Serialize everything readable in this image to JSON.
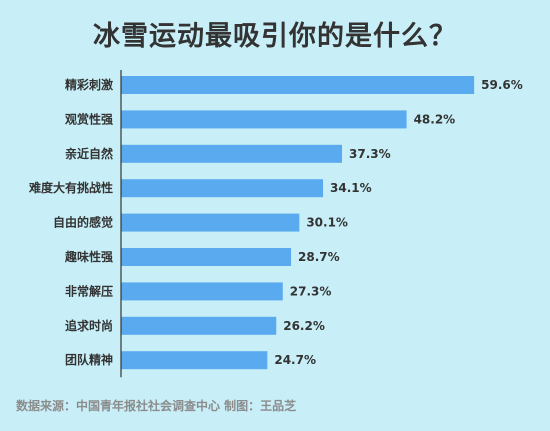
{
  "chart_data": {
    "type": "bar",
    "orientation": "horizontal",
    "title": "冰雪运动最吸引你的是什么？",
    "categories": [
      "精彩刺激",
      "观赏性强",
      "亲近自然",
      "难度大有挑战性",
      "自由的感觉",
      "趣味性强",
      "非常解压",
      "追求时尚",
      "团队精神"
    ],
    "values": [
      59.6,
      48.2,
      37.3,
      34.1,
      30.1,
      28.7,
      27.3,
      26.2,
      24.7
    ],
    "value_labels": [
      "59.6%",
      "48.2%",
      "37.3%",
      "34.1%",
      "30.1%",
      "28.7%",
      "27.3%",
      "26.2%",
      "24.7%"
    ],
    "grid": false,
    "legend": "none",
    "colors": {
      "bar": "#5aaaf0",
      "axis": "#333333",
      "text": "#333333"
    }
  },
  "footer": {
    "source": "数据来源：中国青年报社社会调查中心  制图：王品芝"
  }
}
